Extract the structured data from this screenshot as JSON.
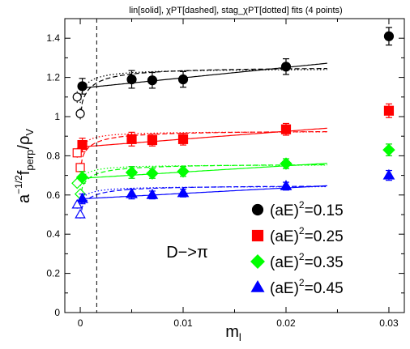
{
  "chart_data": {
    "type": "scatter",
    "title": "lin[solid], χPT[dashed], stag_χPT[dotted] fits (4 points)",
    "xlabel": "m",
    "xlabel_sub": "l",
    "ylabel_prefix": "a",
    "ylabel_exp": "−1/2",
    "ylabel_f": "f",
    "ylabel_f_sub": "perp",
    "ylabel_slash": "/ρ",
    "ylabel_rho_sub": "V",
    "annotation": "D−>π",
    "xlim": [
      -0.0015,
      0.0315
    ],
    "ylim": [
      0,
      1.5
    ],
    "x_ticks": [
      0,
      0.01,
      0.02,
      0.03
    ],
    "x_tick_labels": [
      "0",
      "0.01",
      "0.02",
      "0.03"
    ],
    "y_ticks": [
      0,
      0.2,
      0.4,
      0.6,
      0.8,
      1.0,
      1.2,
      1.4
    ],
    "y_tick_labels": [
      "0",
      "0.2",
      "0.4",
      "0.6",
      "0.8",
      "1",
      "1.2",
      "1.4"
    ],
    "vertical_dashed_line_x": 0.0016,
    "legend_placement": "lower-right",
    "series": [
      {
        "name": "(aE)²=0.15",
        "legend_base": "(aE)",
        "legend_exp": "2",
        "legend_value": "=0.15",
        "color": "#000000",
        "marker": "circle",
        "points": [
          {
            "x": 0.0002,
            "y": 1.155,
            "err": 0.04
          },
          {
            "x": 0.005,
            "y": 1.19,
            "err": 0.045
          },
          {
            "x": 0.007,
            "y": 1.185,
            "err": 0.04
          },
          {
            "x": 0.01,
            "y": 1.19,
            "err": 0.04
          },
          {
            "x": 0.02,
            "y": 1.255,
            "err": 0.04
          },
          {
            "x": 0.03,
            "y": 1.41,
            "err": 0.045
          }
        ],
        "extrapolated": [
          {
            "x": -0.0003,
            "y": 1.1,
            "err": 0.03
          },
          {
            "x": 0.0,
            "y": 1.015,
            "err": 0.03
          }
        ],
        "fit_linear": {
          "a": 1.145,
          "b": 5.3
        },
        "fit_chiral": {
          "y0": 0.99,
          "A": 1.255,
          "C": 0.018
        },
        "fit_staggered": {
          "y0": 1.07,
          "A": 1.245,
          "C": 0.012
        }
      },
      {
        "name": "(aE)²=0.25",
        "legend_base": "(aE)",
        "legend_exp": "2",
        "legend_value": "=0.25",
        "color": "#ff0000",
        "marker": "square",
        "points": [
          {
            "x": 0.0002,
            "y": 0.855,
            "err": 0.035
          },
          {
            "x": 0.005,
            "y": 0.885,
            "err": 0.035
          },
          {
            "x": 0.007,
            "y": 0.88,
            "err": 0.03
          },
          {
            "x": 0.01,
            "y": 0.885,
            "err": 0.03
          },
          {
            "x": 0.02,
            "y": 0.935,
            "err": 0.03
          },
          {
            "x": 0.03,
            "y": 1.03,
            "err": 0.035
          }
        ],
        "extrapolated": [
          {
            "x": -0.0003,
            "y": 0.815,
            "err": 0.025
          },
          {
            "x": 0.0,
            "y": 0.74,
            "err": 0.025
          }
        ],
        "fit_linear": {
          "a": 0.845,
          "b": 4.0
        },
        "fit_chiral": {
          "y0": 0.72,
          "A": 0.93,
          "C": 0.016
        },
        "fit_staggered": {
          "y0": 0.8,
          "A": 0.925,
          "C": 0.01
        }
      },
      {
        "name": "(aE)²=0.35",
        "legend_base": "(aE)",
        "legend_exp": "2",
        "legend_value": "=0.35",
        "color": "#00ff00",
        "marker": "diamond",
        "points": [
          {
            "x": 0.0002,
            "y": 0.69,
            "err": 0.03
          },
          {
            "x": 0.005,
            "y": 0.715,
            "err": 0.03
          },
          {
            "x": 0.007,
            "y": 0.71,
            "err": 0.025
          },
          {
            "x": 0.01,
            "y": 0.72,
            "err": 0.025
          },
          {
            "x": 0.02,
            "y": 0.76,
            "err": 0.025
          },
          {
            "x": 0.03,
            "y": 0.83,
            "err": 0.03
          }
        ],
        "extrapolated": [
          {
            "x": -0.0003,
            "y": 0.66,
            "err": 0.02
          },
          {
            "x": 0.0,
            "y": 0.605,
            "err": 0.02
          }
        ],
        "fit_linear": {
          "a": 0.685,
          "b": 3.2
        },
        "fit_chiral": {
          "y0": 0.58,
          "A": 0.76,
          "C": 0.016
        },
        "fit_staggered": {
          "y0": 0.645,
          "A": 0.755,
          "C": 0.01
        }
      },
      {
        "name": "(aE)²=0.45",
        "legend_base": "(aE)",
        "legend_exp": "2",
        "legend_value": "=0.45",
        "color": "#0000ff",
        "marker": "triangle",
        "points": [
          {
            "x": 0.0002,
            "y": 0.58,
            "err": 0.025
          },
          {
            "x": 0.005,
            "y": 0.605,
            "err": 0.025
          },
          {
            "x": 0.007,
            "y": 0.6,
            "err": 0.02
          },
          {
            "x": 0.01,
            "y": 0.61,
            "err": 0.02
          },
          {
            "x": 0.02,
            "y": 0.645,
            "err": 0.02
          },
          {
            "x": 0.03,
            "y": 0.7,
            "err": 0.025
          }
        ],
        "extrapolated": [
          {
            "x": -0.0003,
            "y": 0.55,
            "err": 0.02
          },
          {
            "x": 0.0,
            "y": 0.5,
            "err": 0.02
          }
        ],
        "fit_linear": {
          "a": 0.58,
          "b": 2.8
        },
        "fit_chiral": {
          "y0": 0.485,
          "A": 0.65,
          "C": 0.016
        },
        "fit_staggered": {
          "y0": 0.54,
          "A": 0.645,
          "C": 0.01
        }
      }
    ]
  }
}
